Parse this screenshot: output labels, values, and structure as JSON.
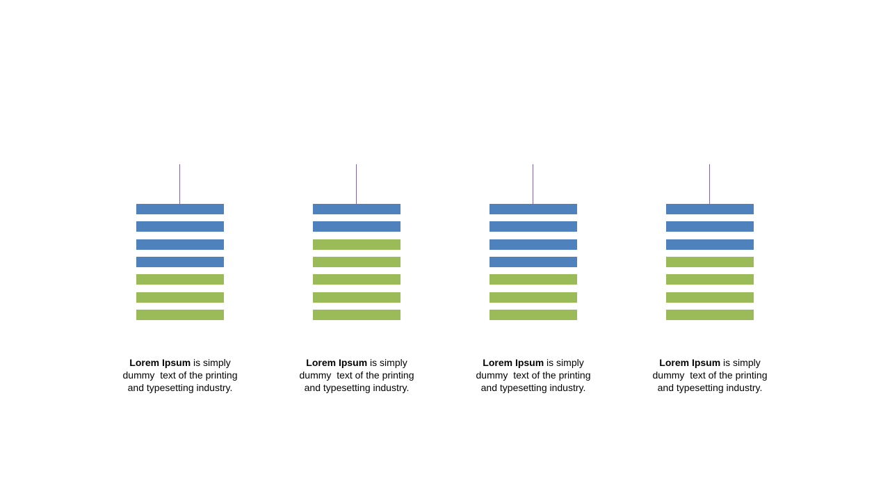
{
  "colors": {
    "blue": "#4f81bd",
    "green": "#9bbb59",
    "stem": "#8064a2"
  },
  "columns": [
    {
      "bars": [
        "blue",
        "blue",
        "blue",
        "blue",
        "green",
        "green",
        "green"
      ],
      "caption": {
        "bold": "Lorem Ipsum",
        "line1_rest": " is simply",
        "line2": "dummy  text of the printing",
        "line3": "and typesetting industry."
      }
    },
    {
      "bars": [
        "blue",
        "blue",
        "green",
        "green",
        "green",
        "green",
        "green"
      ],
      "caption": {
        "bold": "Lorem Ipsum",
        "line1_rest": " is simply",
        "line2": "dummy  text of the printing",
        "line3": "and typesetting industry."
      }
    },
    {
      "bars": [
        "blue",
        "blue",
        "blue",
        "blue",
        "green",
        "green",
        "green"
      ],
      "caption": {
        "bold": "Lorem Ipsum",
        "line1_rest": " is simply",
        "line2": "dummy  text of the printing",
        "line3": "and typesetting industry."
      }
    },
    {
      "bars": [
        "blue",
        "blue",
        "blue",
        "green",
        "green",
        "green",
        "green"
      ],
      "caption": {
        "bold": "Lorem Ipsum",
        "line1_rest": " is simply",
        "line2": "dummy  text of the printing",
        "line3": "and typesetting industry."
      }
    }
  ]
}
